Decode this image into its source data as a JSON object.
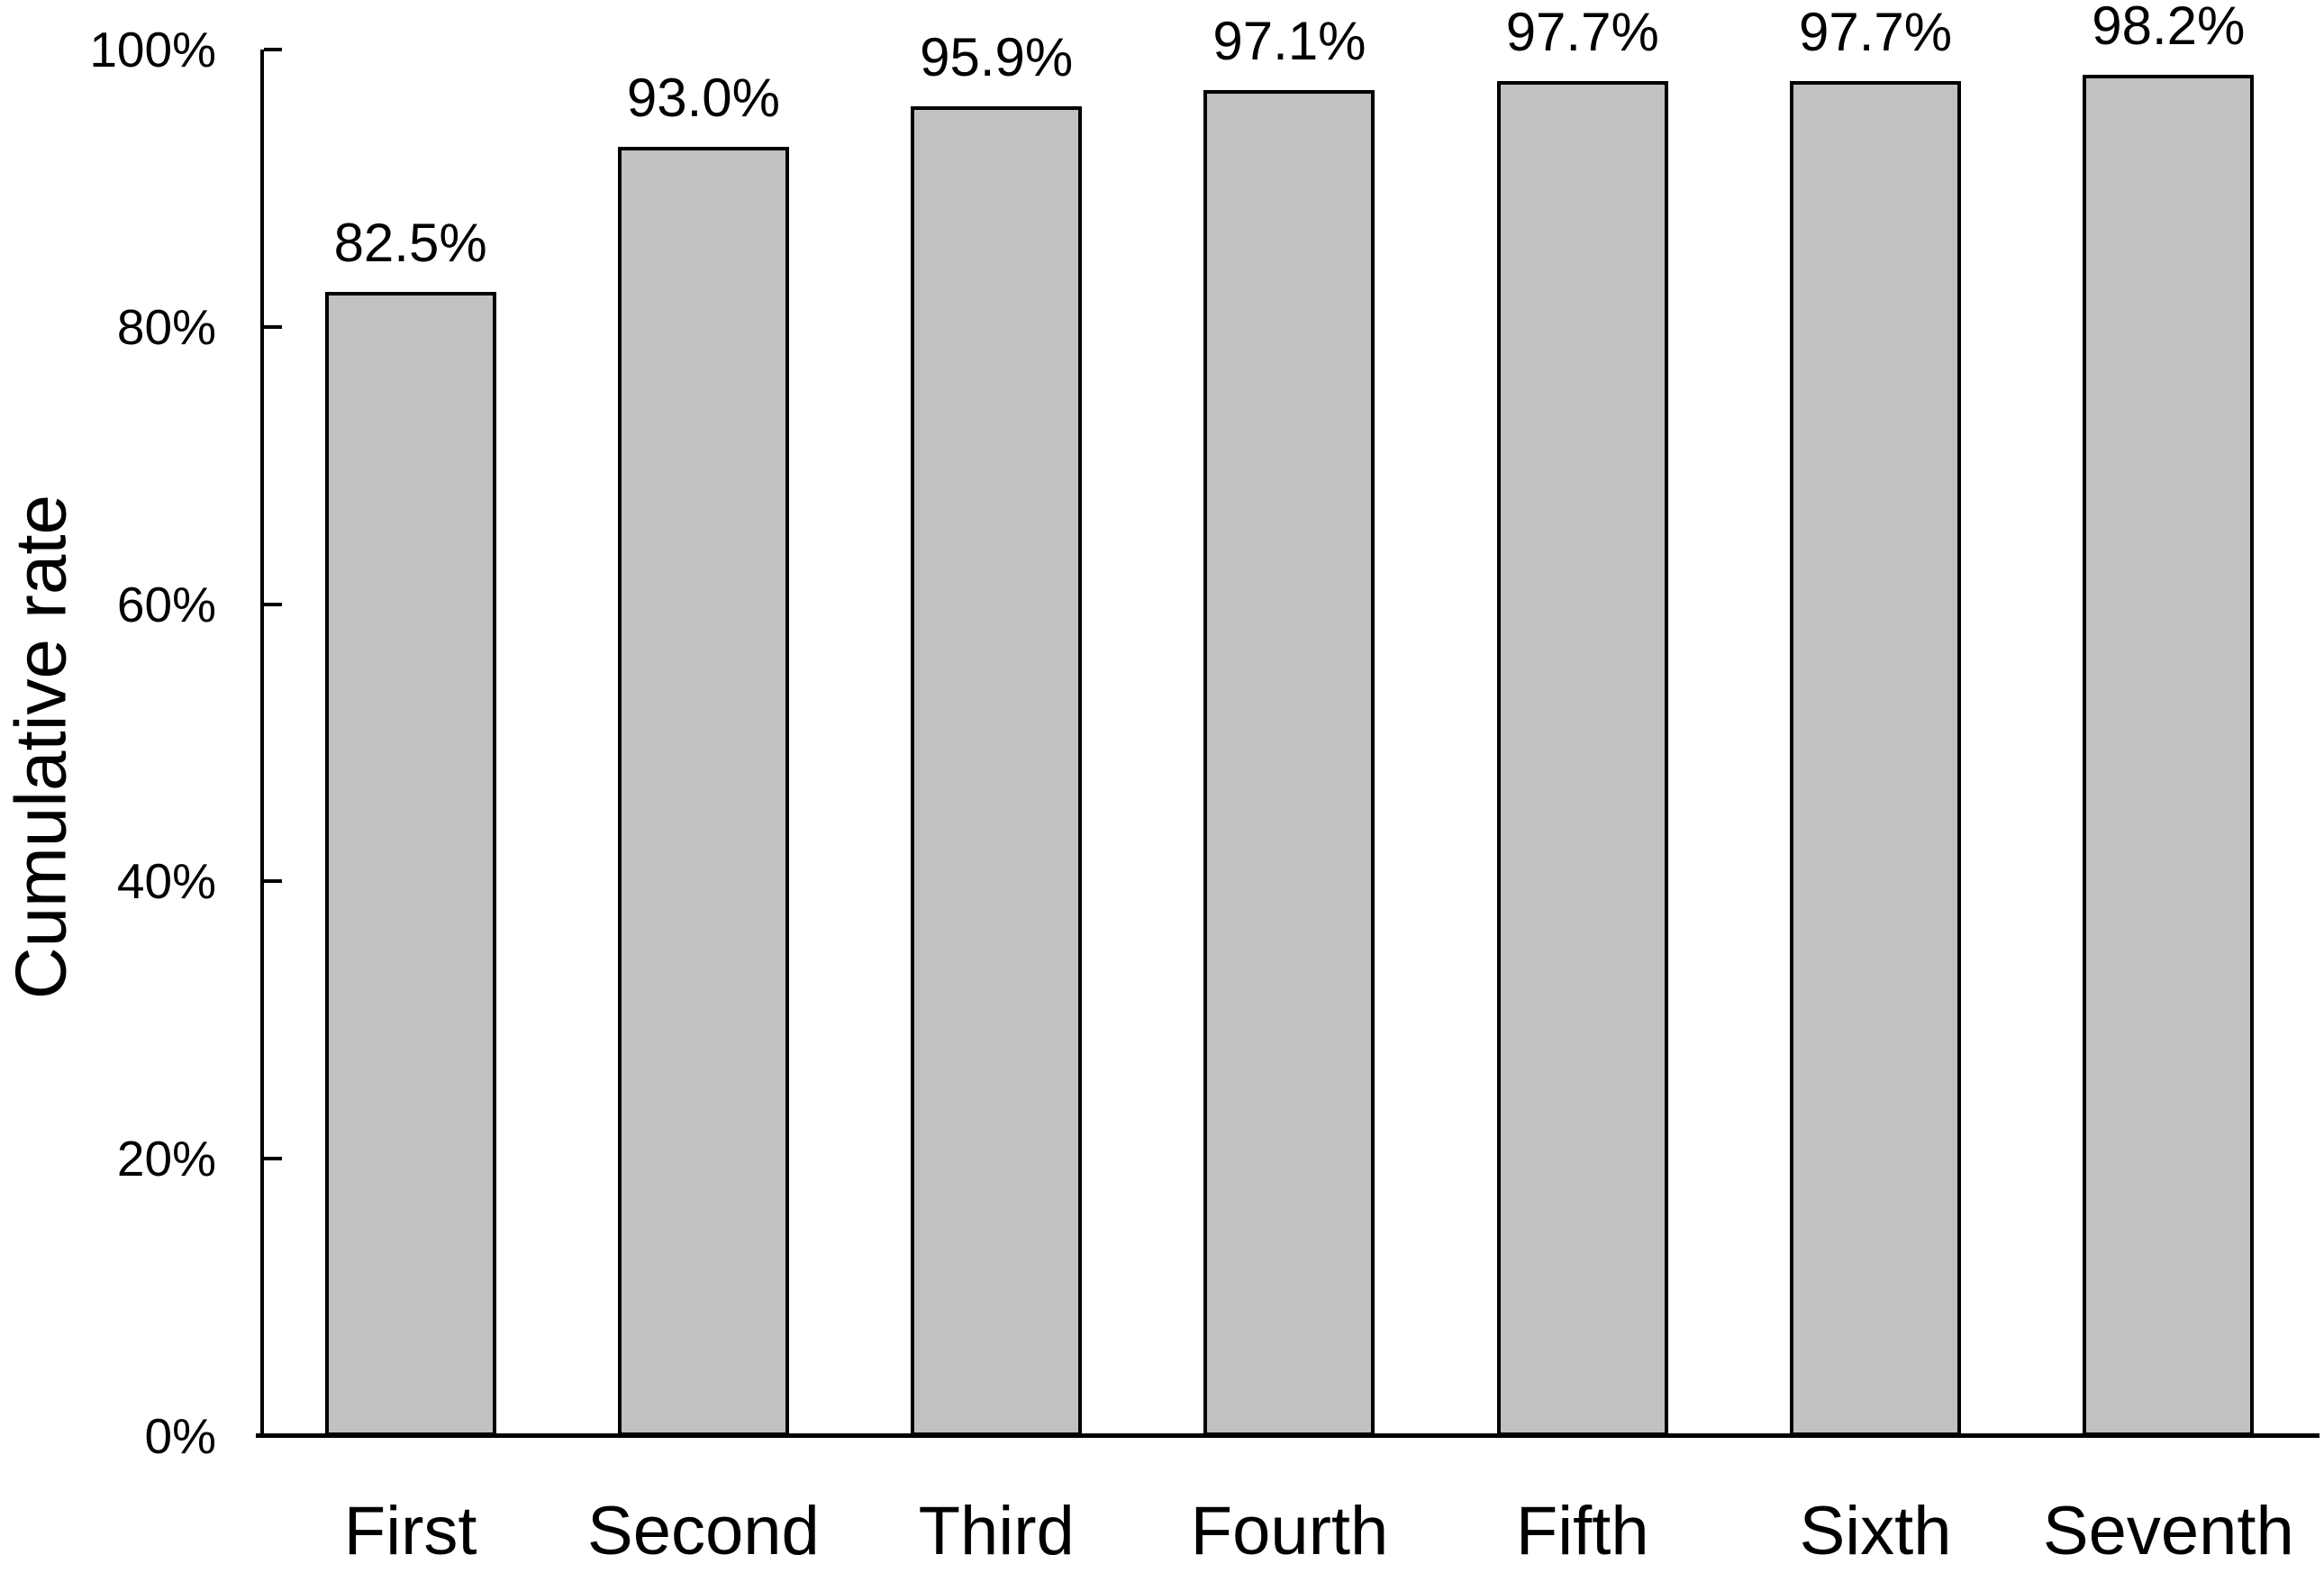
{
  "chart_data": {
    "type": "bar",
    "title": "",
    "xlabel": "",
    "ylabel": "Cumulative rate",
    "categories": [
      "First",
      "Second",
      "Third",
      "Fourth",
      "Fifth",
      "Sixth",
      "Seventh"
    ],
    "values": [
      82.5,
      93.0,
      95.9,
      97.1,
      97.7,
      97.7,
      98.2
    ],
    "value_labels": [
      "82.5%",
      "93.0%",
      "95.9%",
      "97.1%",
      "97.7%",
      "97.7%",
      "98.2%"
    ],
    "ylim": [
      0,
      100
    ],
    "ytick_values": [
      0,
      20,
      40,
      60,
      80,
      100
    ],
    "ytick_labels": [
      "0%",
      "20%",
      "40%",
      "60%",
      "80%",
      "100%"
    ],
    "grid": "off",
    "legend": "none",
    "bar_fill_color": "#c1c1c1",
    "bar_border_color": "#000000",
    "axis_color": "#000000",
    "text_color": "#000000",
    "background_color": "#ffffff"
  }
}
